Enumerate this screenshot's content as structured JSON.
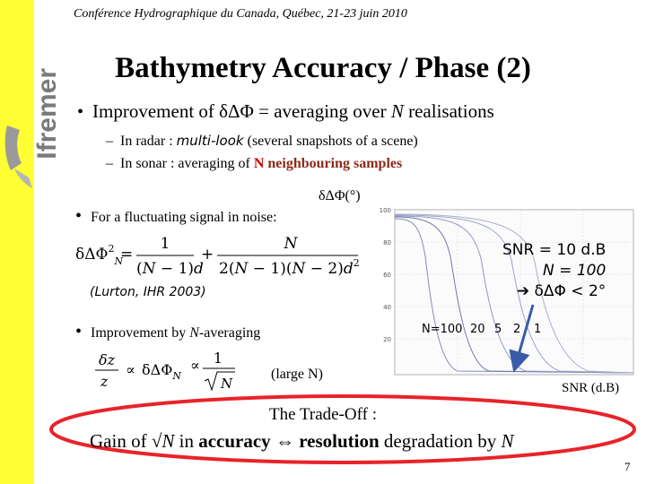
{
  "header": {
    "conference": "Conférence Hydrographique du Canada, Québec, 21-23 juin 2010"
  },
  "brand": {
    "logo_text": "Ifremer",
    "sidebar_color": "#ffff33"
  },
  "slide": {
    "title": "Bathymetry Accuracy / Phase (2)",
    "bullet1": {
      "prefix": "Improvement of ",
      "symbol": "δΔΦ",
      "suffix_pre": " = averaging over ",
      "n": "N",
      "suffix_post": " realisations"
    },
    "sub1": {
      "dash": "–",
      "prefix": "In radar : ",
      "italic": "multi-look",
      "suffix": " (several snapshots of a scene)"
    },
    "sub2": {
      "dash": "–",
      "prefix": "In sonar : averaging of ",
      "n": "N",
      "bold": " neighbouring samples"
    },
    "bullet2": "For a fluctuating signal in noise:",
    "reference": "(Lurton, IHR 2003)",
    "bullet3": {
      "prefix": "Improvement by ",
      "n": "N",
      "suffix": "-averaging"
    },
    "large_n": "(large N)",
    "tradeoff_title": "The Trade-Off :",
    "tradeoff": {
      "prefix": "Gain of ",
      "sqrt": "√",
      "n": "N",
      "mid": " in ",
      "accuracy": "accuracy",
      "arrow": " ⇔ ",
      "resolution": "resolution",
      "suffix": " degradation by ",
      "n2": "N"
    },
    "page_number": "7"
  },
  "chart_data": {
    "type": "line",
    "ylabel": "δΔΦ(°)",
    "xlabel": "SNR (d.B)",
    "yticks": [
      "100",
      "80",
      "60",
      "40",
      "20"
    ],
    "series_labels": [
      "N=100",
      "20",
      "5",
      "2",
      "1"
    ],
    "annotation": {
      "snr": "SNR = 10 d.B",
      "n": "N = 100",
      "result": "➔ δΔΦ < 2°"
    }
  }
}
